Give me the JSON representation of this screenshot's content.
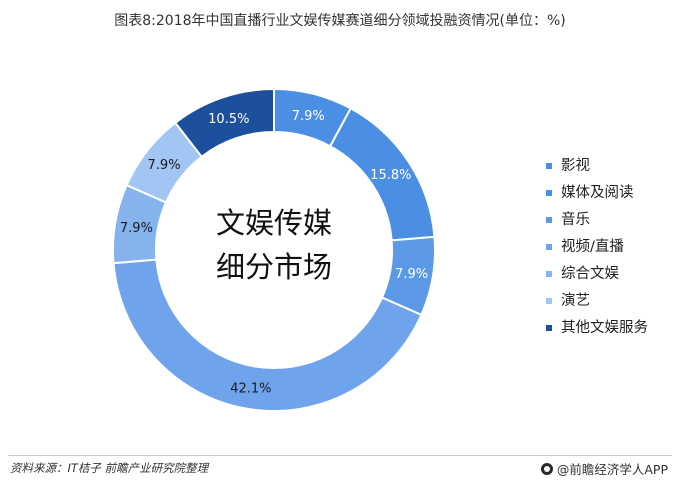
{
  "chart_data": {
    "type": "pie",
    "title": "图表8:2018年中国直播行业文娱传媒赛道细分领域投融资情况(单位：%)",
    "center_label": [
      "文娱传媒",
      "细分市场"
    ],
    "slices": [
      {
        "label": "影视",
        "value": 7.9,
        "label_text": "7.9%",
        "color": "#4a8fe3",
        "text_color": "#ffffff"
      },
      {
        "label": "媒体及阅读",
        "value": 15.8,
        "label_text": "15.8%",
        "color": "#4a8fe3",
        "text_color": "#ffffff"
      },
      {
        "label": "音乐",
        "value": 7.9,
        "label_text": "7.9%",
        "color": "#5c9ae8",
        "text_color": "#ffffff"
      },
      {
        "label": "视频/直播",
        "value": 42.1,
        "label_text": "42.1%",
        "color": "#6fa4ec",
        "text_color": "#1a1a1a"
      },
      {
        "label": "综合文娱",
        "value": 7.9,
        "label_text": "7.9%",
        "color": "#86b3ee",
        "text_color": "#1a1a1a"
      },
      {
        "label": "演艺",
        "value": 7.9,
        "label_text": "7.9%",
        "color": "#a2c6f3",
        "text_color": "#1a1a1a"
      },
      {
        "label": "其他文娱服务",
        "value": 10.5,
        "label_text": "10.5%",
        "color": "#1c4f9c",
        "text_color": "#ffffff"
      }
    ],
    "legend_placement": "right"
  },
  "footer": {
    "source": "资料来源：IT桔子 前瞻产业研究院整理",
    "brand": "@前瞻经济学人APP"
  }
}
